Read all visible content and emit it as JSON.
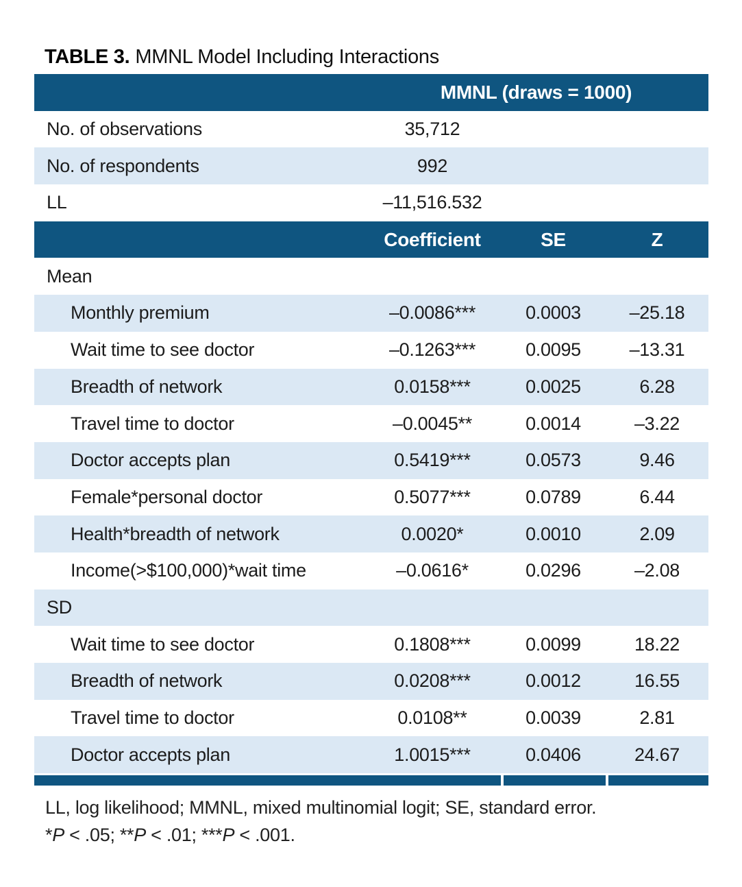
{
  "title": {
    "label": "TABLE 3.",
    "text": "MMNL Model Including Interactions"
  },
  "colors": {
    "navy_band": "#0f5580",
    "shaded_row": "#dbe8f4",
    "text": "#1c1c1c",
    "header_text": "#ffffff"
  },
  "table": {
    "model_header": "MMNL (draws = 1000)",
    "info_rows": [
      {
        "label": "No. of observations",
        "value": "35,712",
        "shaded": false
      },
      {
        "label": "No. of respondents",
        "value": "992",
        "shaded": true
      },
      {
        "label": "LL",
        "value": "–11,516.532",
        "shaded": false
      }
    ],
    "columns": [
      "Coefficient",
      "SE",
      "Z"
    ],
    "sections": [
      {
        "name": "Mean",
        "shaded": false,
        "rows": [
          {
            "label": "Monthly premium",
            "coefficient": "–0.0086***",
            "se": "0.0003",
            "z": "–25.18",
            "shaded": true
          },
          {
            "label": "Wait time to see doctor",
            "coefficient": "–0.1263***",
            "se": "0.0095",
            "z": "–13.31",
            "shaded": false
          },
          {
            "label": "Breadth of network",
            "coefficient": "0.0158***",
            "se": "0.0025",
            "z": "6.28",
            "shaded": true
          },
          {
            "label": "Travel time to doctor",
            "coefficient": "–0.0045**",
            "se": "0.0014",
            "z": "–3.22",
            "shaded": false
          },
          {
            "label": "Doctor accepts plan",
            "coefficient": "0.5419***",
            "se": "0.0573",
            "z": "9.46",
            "shaded": true
          },
          {
            "label": "Female*personal doctor",
            "coefficient": "0.5077***",
            "se": "0.0789",
            "z": "6.44",
            "shaded": false
          },
          {
            "label": "Health*breadth of network",
            "coefficient": "0.0020*",
            "se": "0.0010",
            "z": "2.09",
            "shaded": true
          },
          {
            "label": "Income(>$100,000)*wait time",
            "coefficient": "–0.0616*",
            "se": "0.0296",
            "z": "–2.08",
            "shaded": false
          }
        ]
      },
      {
        "name": "SD",
        "shaded": true,
        "rows": [
          {
            "label": "Wait time to see doctor",
            "coefficient": "0.1808***",
            "se": "0.0099",
            "z": "18.22",
            "shaded": false
          },
          {
            "label": "Breadth of network",
            "coefficient": "0.0208***",
            "se": "0.0012",
            "z": "16.55",
            "shaded": true
          },
          {
            "label": "Travel time to doctor",
            "coefficient": "0.0108**",
            "se": "0.0039",
            "z": "2.81",
            "shaded": false
          },
          {
            "label": "Doctor accepts plan",
            "coefficient": "1.0015***",
            "se": "0.0406",
            "z": "24.67",
            "shaded": true
          }
        ]
      }
    ]
  },
  "footnotes": {
    "abbreviations": "LL, log likelihood; MMNL, mixed multinomial logit; SE, standard error.",
    "significance_segments": [
      {
        "text": "*"
      },
      {
        "text": "P",
        "italic": true
      },
      {
        "text": " < .05; **"
      },
      {
        "text": "P",
        "italic": true
      },
      {
        "text": " < .01; ***"
      },
      {
        "text": "P",
        "italic": true
      },
      {
        "text": " < .001."
      }
    ]
  }
}
